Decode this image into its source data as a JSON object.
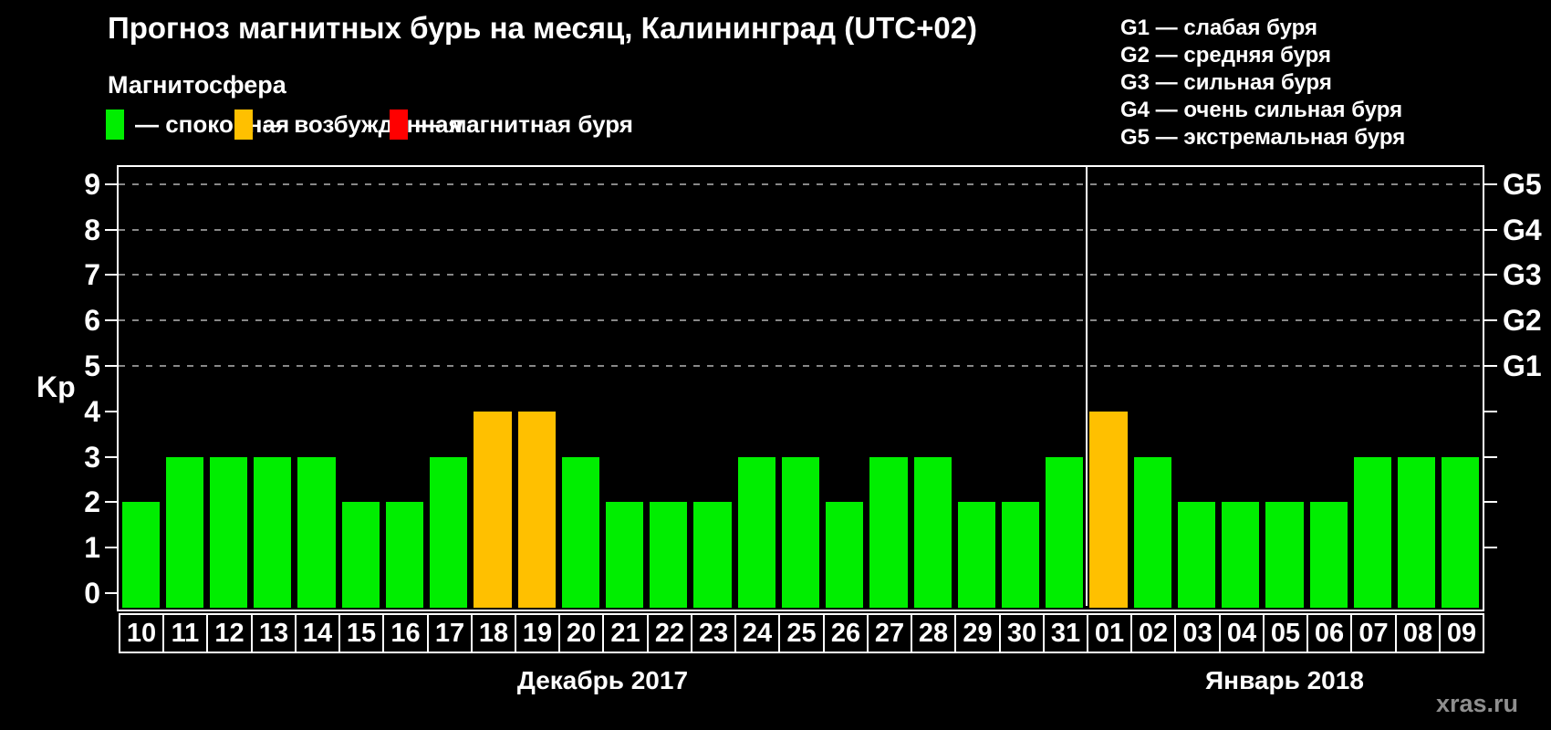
{
  "title": "Прогноз магнитных бурь на месяц, Калининград (UTC+02)",
  "subtitle": "Магнитосфера",
  "watermark": "xras.ru",
  "legend": [
    {
      "color": "green",
      "label": "— спокойная"
    },
    {
      "color": "orange",
      "label": "— возбужденная"
    },
    {
      "color": "red",
      "label": "— магнитная буря"
    }
  ],
  "g_legend": [
    "G1 — слабая буря",
    "G2 — средняя буря",
    "G3 — сильная буря",
    "G4 — очень сильная буря",
    "G5 — экстремальная буря"
  ],
  "chart_data": {
    "type": "bar",
    "ylabel": "Kp",
    "ylim": [
      0,
      9
    ],
    "yticks": [
      0,
      1,
      2,
      3,
      4,
      5,
      6,
      7,
      8,
      9
    ],
    "gridlines_at": [
      5,
      6,
      7,
      8,
      9
    ],
    "right_axis": [
      {
        "kp": 5,
        "label": "G1"
      },
      {
        "kp": 6,
        "label": "G2"
      },
      {
        "kp": 7,
        "label": "G3"
      },
      {
        "kp": 8,
        "label": "G4"
      },
      {
        "kp": 9,
        "label": "G5"
      }
    ],
    "categories": [
      "10",
      "11",
      "12",
      "13",
      "14",
      "15",
      "16",
      "17",
      "18",
      "19",
      "20",
      "21",
      "22",
      "23",
      "24",
      "25",
      "26",
      "27",
      "28",
      "29",
      "30",
      "31",
      "01",
      "02",
      "03",
      "04",
      "05",
      "06",
      "07",
      "08",
      "09"
    ],
    "values": [
      2,
      3,
      3,
      3,
      3,
      2,
      2,
      3,
      4,
      4,
      3,
      2,
      2,
      2,
      3,
      3,
      2,
      3,
      3,
      2,
      2,
      3,
      4,
      3,
      2,
      2,
      2,
      2,
      3,
      3,
      3
    ],
    "bar_states": [
      "green",
      "green",
      "green",
      "green",
      "green",
      "green",
      "green",
      "green",
      "orange",
      "orange",
      "green",
      "green",
      "green",
      "green",
      "green",
      "green",
      "green",
      "green",
      "green",
      "green",
      "green",
      "green",
      "orange",
      "green",
      "green",
      "green",
      "green",
      "green",
      "green",
      "green",
      "green"
    ],
    "months": [
      {
        "label": "Декабрь 2017",
        "start_index": 0,
        "count": 22
      },
      {
        "label": "Январь 2018",
        "start_index": 22,
        "count": 9
      }
    ],
    "colors": {
      "green": "#00ee00",
      "orange": "#ffc000",
      "red": "#ff0000"
    },
    "grid_color": "#888888",
    "background": "#000000",
    "legend_position": "top"
  }
}
